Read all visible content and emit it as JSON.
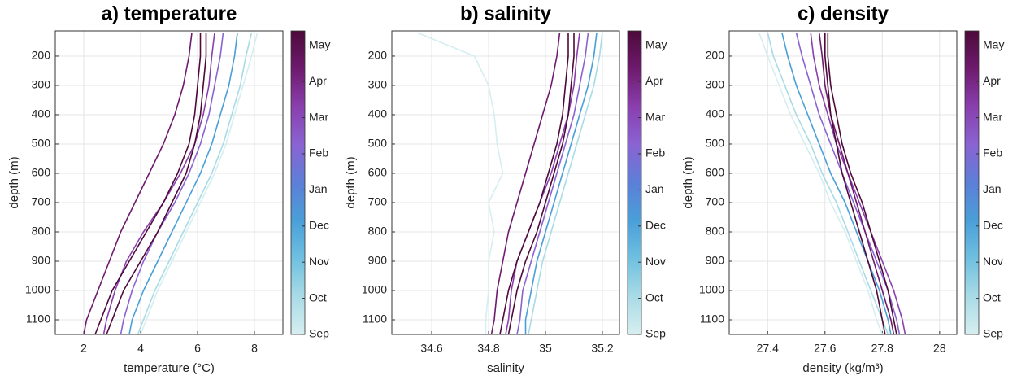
{
  "chart_data": [
    {
      "type": "line",
      "title": "a) temperature",
      "xlabel": "temperature (°C)",
      "ylabel": "depth (m)",
      "y": [
        120,
        200,
        300,
        400,
        500,
        600,
        700,
        800,
        900,
        1000,
        1100,
        1150
      ],
      "series": [
        {
          "color": "#d6eef0",
          "values": [
            8.1,
            7.9,
            7.6,
            7.3,
            7.0,
            6.6,
            6.1,
            5.6,
            5.1,
            4.6,
            4.2,
            4.0
          ]
        },
        {
          "color": "#a9dbe6",
          "values": [
            7.9,
            7.7,
            7.5,
            7.2,
            6.9,
            6.5,
            6.0,
            5.5,
            5.0,
            4.5,
            4.1,
            3.9
          ]
        },
        {
          "color": "#4a9fd8",
          "values": [
            7.4,
            7.3,
            7.1,
            6.8,
            6.5,
            6.1,
            5.6,
            5.1,
            4.6,
            4.1,
            3.7,
            3.6
          ]
        },
        {
          "color": "#8a63d2",
          "values": [
            6.9,
            6.8,
            6.6,
            6.4,
            6.1,
            5.7,
            5.2,
            4.6,
            4.1,
            3.7,
            3.4,
            3.3
          ]
        },
        {
          "color": "#8a3fae",
          "values": [
            6.6,
            6.5,
            6.4,
            6.2,
            5.9,
            5.4,
            4.8,
            4.1,
            3.5,
            3.1,
            2.8,
            2.7
          ]
        },
        {
          "color": "#6e1a6e",
          "values": [
            5.8,
            5.7,
            5.5,
            5.2,
            4.8,
            4.3,
            3.8,
            3.3,
            2.9,
            2.5,
            2.1,
            2.0
          ]
        },
        {
          "color": "#4d0a3a",
          "values": [
            6.1,
            6.1,
            6.0,
            5.9,
            5.7,
            5.3,
            4.8,
            4.2,
            3.6,
            3.0,
            2.6,
            2.4
          ]
        },
        {
          "color": "#4d0a3a",
          "values": [
            6.3,
            6.3,
            6.2,
            6.1,
            5.9,
            5.6,
            5.1,
            4.6,
            4.0,
            3.4,
            3.0,
            2.8
          ]
        }
      ],
      "xlim": [
        1,
        9
      ],
      "xticks": [
        2,
        4,
        6,
        8
      ],
      "ylim": [
        1150,
        114
      ],
      "yticks": [
        200,
        300,
        400,
        500,
        600,
        700,
        800,
        900,
        1000,
        1100
      ],
      "grid": true,
      "colorbar": {
        "colors": [
          "#d6eef0",
          "#a9dbe6",
          "#6fc0e0",
          "#4a9fd8",
          "#5c7fd8",
          "#8a63d2",
          "#8a3fae",
          "#6e1a6e",
          "#4d0a3a"
        ],
        "clim": [
          0,
          8.4
        ],
        "ticks": [
          {
            "value": 0,
            "label": "Sep"
          },
          {
            "value": 1,
            "label": "Oct"
          },
          {
            "value": 2,
            "label": "Nov"
          },
          {
            "value": 3,
            "label": "Dec"
          },
          {
            "value": 4,
            "label": "Jan"
          },
          {
            "value": 5,
            "label": "Feb"
          },
          {
            "value": 6,
            "label": "Mar"
          },
          {
            "value": 7,
            "label": "Apr"
          },
          {
            "value": 8,
            "label": "May"
          }
        ]
      }
    },
    {
      "type": "line",
      "title": "b) salinity",
      "xlabel": "salinity",
      "ylabel": "depth (m)",
      "y": [
        120,
        200,
        300,
        400,
        500,
        600,
        700,
        800,
        900,
        1000,
        1100,
        1150
      ],
      "series": [
        {
          "color": "#d6eef0",
          "values": [
            34.55,
            34.75,
            34.8,
            34.82,
            34.83,
            34.85,
            34.8,
            34.82,
            34.8,
            34.8,
            34.79,
            34.79
          ]
        },
        {
          "color": "#a9dbe6",
          "values": [
            35.2,
            35.19,
            35.17,
            35.14,
            35.11,
            35.08,
            35.05,
            35.02,
            34.99,
            34.97,
            34.95,
            34.94
          ]
        },
        {
          "color": "#4a9fd8",
          "values": [
            35.18,
            35.17,
            35.15,
            35.12,
            35.09,
            35.06,
            35.03,
            35.0,
            34.97,
            34.95,
            34.93,
            34.93
          ]
        },
        {
          "color": "#8a63d2",
          "values": [
            35.15,
            35.14,
            35.12,
            35.1,
            35.07,
            35.04,
            35.01,
            34.98,
            34.95,
            34.92,
            34.91,
            34.9
          ]
        },
        {
          "color": "#8a3fae",
          "values": [
            35.12,
            35.11,
            35.1,
            35.08,
            35.05,
            35.02,
            34.98,
            34.94,
            34.9,
            34.88,
            34.87,
            34.86
          ]
        },
        {
          "color": "#6e1a6e",
          "values": [
            35.05,
            35.04,
            35.02,
            34.99,
            34.96,
            34.93,
            34.9,
            34.87,
            34.85,
            34.83,
            34.82,
            34.81
          ]
        },
        {
          "color": "#4d0a3a",
          "values": [
            35.08,
            35.08,
            35.07,
            35.06,
            35.04,
            35.01,
            34.98,
            34.94,
            34.9,
            34.87,
            34.85,
            34.84
          ]
        },
        {
          "color": "#4d0a3a",
          "values": [
            35.1,
            35.1,
            35.09,
            35.08,
            35.06,
            35.03,
            35.0,
            34.97,
            34.93,
            34.9,
            34.88,
            34.87
          ]
        }
      ],
      "xlim": [
        34.46,
        35.26
      ],
      "xticks": [
        34.6,
        34.8,
        35,
        35.2
      ],
      "ylim": [
        1150,
        114
      ],
      "yticks": [
        200,
        300,
        400,
        500,
        600,
        700,
        800,
        900,
        1000,
        1100
      ],
      "grid": true,
      "colorbar": {
        "colors": [
          "#d6eef0",
          "#a9dbe6",
          "#6fc0e0",
          "#4a9fd8",
          "#5c7fd8",
          "#8a63d2",
          "#8a3fae",
          "#6e1a6e",
          "#4d0a3a"
        ],
        "clim": [
          0,
          8.4
        ],
        "ticks": [
          {
            "value": 0,
            "label": "Sep"
          },
          {
            "value": 1,
            "label": "Oct"
          },
          {
            "value": 2,
            "label": "Nov"
          },
          {
            "value": 3,
            "label": "Dec"
          },
          {
            "value": 4,
            "label": "Jan"
          },
          {
            "value": 5,
            "label": "Feb"
          },
          {
            "value": 6,
            "label": "Mar"
          },
          {
            "value": 7,
            "label": "Apr"
          },
          {
            "value": 8,
            "label": "May"
          }
        ]
      }
    },
    {
      "type": "line",
      "title": "c) density",
      "xlabel": "density (kg/m³)",
      "ylabel": "depth (m)",
      "y": [
        120,
        200,
        300,
        400,
        500,
        600,
        700,
        800,
        900,
        1000,
        1100,
        1150
      ],
      "series": [
        {
          "color": "#d6eef0",
          "values": [
            27.37,
            27.4,
            27.44,
            27.48,
            27.53,
            27.58,
            27.62,
            27.67,
            27.71,
            27.75,
            27.78,
            27.8
          ]
        },
        {
          "color": "#a9dbe6",
          "values": [
            27.4,
            27.42,
            27.46,
            27.5,
            27.55,
            27.59,
            27.64,
            27.68,
            27.72,
            27.76,
            27.8,
            27.82
          ]
        },
        {
          "color": "#4a9fd8",
          "values": [
            27.45,
            27.47,
            27.5,
            27.54,
            27.58,
            27.62,
            27.67,
            27.71,
            27.75,
            27.79,
            27.82,
            27.83
          ]
        },
        {
          "color": "#8a63d2",
          "values": [
            27.5,
            27.52,
            27.55,
            27.58,
            27.62,
            27.66,
            27.7,
            27.74,
            27.78,
            27.82,
            27.85,
            27.86
          ]
        },
        {
          "color": "#8a3fae",
          "values": [
            27.55,
            27.56,
            27.58,
            27.61,
            27.64,
            27.68,
            27.72,
            27.76,
            27.8,
            27.84,
            27.87,
            27.88
          ]
        },
        {
          "color": "#6e1a6e",
          "values": [
            27.58,
            27.59,
            27.6,
            27.62,
            27.65,
            27.68,
            27.71,
            27.74,
            27.77,
            27.8,
            27.83,
            27.84
          ]
        },
        {
          "color": "#4d0a3a",
          "values": [
            27.6,
            27.6,
            27.61,
            27.62,
            27.64,
            27.66,
            27.69,
            27.72,
            27.75,
            27.78,
            27.8,
            27.81
          ]
        },
        {
          "color": "#4d0a3a",
          "values": [
            27.61,
            27.61,
            27.62,
            27.64,
            27.66,
            27.69,
            27.73,
            27.76,
            27.79,
            27.82,
            27.84,
            27.85
          ]
        }
      ],
      "xlim": [
        27.266,
        28.06
      ],
      "xticks": [
        27.4,
        27.6,
        27.8,
        28
      ],
      "ylim": [
        1150,
        114
      ],
      "yticks": [
        200,
        300,
        400,
        500,
        600,
        700,
        800,
        900,
        1000,
        1100
      ],
      "grid": true,
      "colorbar": {
        "colors": [
          "#d6eef0",
          "#a9dbe6",
          "#6fc0e0",
          "#4a9fd8",
          "#5c7fd8",
          "#8a63d2",
          "#8a3fae",
          "#6e1a6e",
          "#4d0a3a"
        ],
        "clim": [
          0,
          8.4
        ],
        "ticks": [
          {
            "value": 0,
            "label": "Sep"
          },
          {
            "value": 1,
            "label": "Oct"
          },
          {
            "value": 2,
            "label": "Nov"
          },
          {
            "value": 3,
            "label": "Dec"
          },
          {
            "value": 4,
            "label": "Jan"
          },
          {
            "value": 5,
            "label": "Feb"
          },
          {
            "value": 6,
            "label": "Mar"
          },
          {
            "value": 7,
            "label": "Apr"
          },
          {
            "value": 8,
            "label": "May"
          }
        ]
      }
    }
  ]
}
